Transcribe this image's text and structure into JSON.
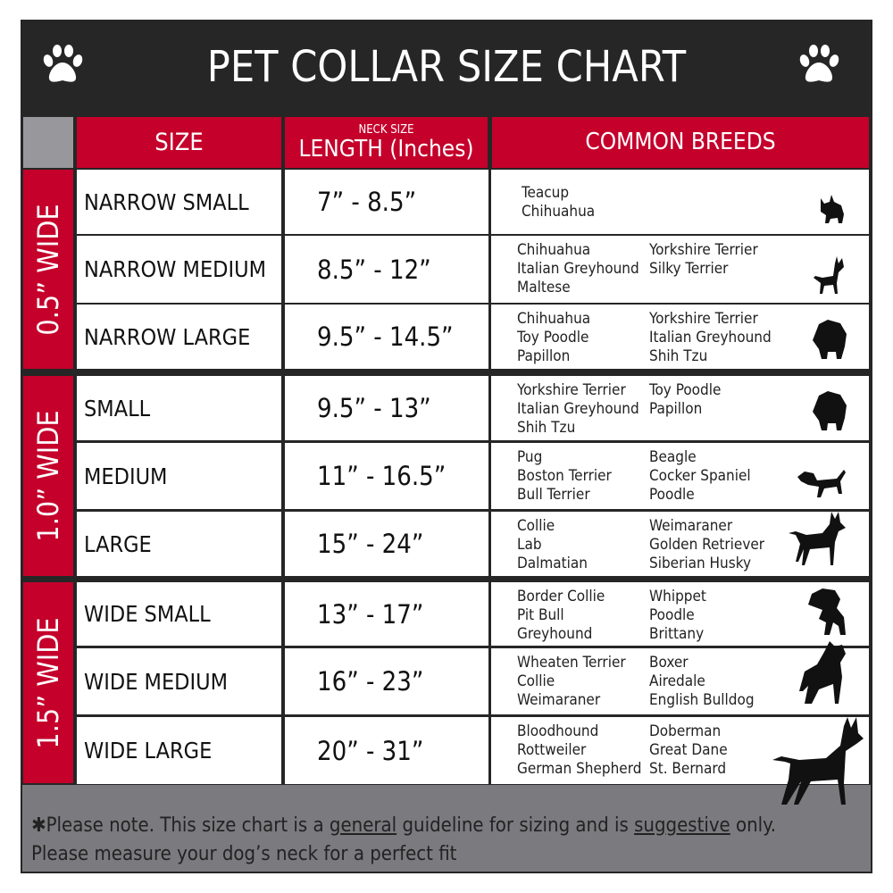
{
  "title": "PET COLLAR SIZE CHART",
  "headers": {
    "size": "SIZE",
    "neck_size": "NECK SIZE",
    "length": "LENGTH (Inches)",
    "breeds": "COMMON BREEDS"
  },
  "colors": {
    "red": "#c4002b",
    "dark": "#262626",
    "gray": "#7b7b7f"
  },
  "groups": [
    {
      "label": "0.5” WIDE",
      "rows": [
        {
          "size": "NARROW SMALL",
          "length": "7” - 8.5”",
          "breeds_left": [
            "Teacup",
            "Chihuahua"
          ],
          "breeds_right": [],
          "icon": "yorkie-silhouette-icon"
        },
        {
          "size": "NARROW MEDIUM",
          "length": "8.5” - 12”",
          "breeds_left": [
            "Chihuahua",
            "Italian Greyhound",
            "Maltese"
          ],
          "breeds_right": [
            "Yorkshire Terrier",
            "Silky Terrier"
          ],
          "icon": "chihuahua-silhouette-icon"
        },
        {
          "size": "NARROW LARGE",
          "length": "9.5” - 14.5”",
          "breeds_left": [
            "Chihuahua",
            "Toy Poodle",
            "Papillon"
          ],
          "breeds_right": [
            "Yorkshire Terrier",
            "Italian Greyhound",
            "Shih Tzu"
          ],
          "icon": "pomeranian-silhouette-icon"
        }
      ]
    },
    {
      "label": "1.0” WIDE",
      "rows": [
        {
          "size": "SMALL",
          "length": "9.5” - 13”",
          "breeds_left": [
            "Yorkshire Terrier",
            "Italian Greyhound",
            "Shih Tzu"
          ],
          "breeds_right": [
            "Toy Poodle",
            "Papillon"
          ],
          "icon": "pomeranian-silhouette-icon"
        },
        {
          "size": "MEDIUM",
          "length": "11” - 16.5”",
          "breeds_left": [
            "Pug",
            "Boston Terrier",
            "Bull Terrier"
          ],
          "breeds_right": [
            "Beagle",
            "Cocker Spaniel",
            "Poodle"
          ],
          "icon": "dachshund-silhouette-icon"
        },
        {
          "size": "LARGE",
          "length": "15” - 24”",
          "breeds_left": [
            "Collie",
            "Lab",
            "Dalmatian"
          ],
          "breeds_right": [
            "Weimaraner",
            "Golden Retriever",
            "Siberian Husky"
          ],
          "icon": "shepherd-silhouette-icon"
        }
      ]
    },
    {
      "label": "1.5” WIDE",
      "rows": [
        {
          "size": "WIDE SMALL",
          "length": "13” - 17”",
          "breeds_left": [
            "Border Collie",
            "Pit Bull",
            "Greyhound"
          ],
          "breeds_right": [
            "Whippet",
            "Poodle",
            "Brittany"
          ],
          "icon": "bulldog-silhouette-icon"
        },
        {
          "size": "WIDE MEDIUM",
          "length": "16” - 23”",
          "breeds_left": [
            "Wheaten Terrier",
            "Collie",
            "Weimaraner"
          ],
          "breeds_right": [
            "Boxer",
            "Airedale",
            "English Bulldog"
          ],
          "icon": "pitbull-silhouette-icon"
        },
        {
          "size": "WIDE LARGE",
          "length": "20” - 31”",
          "breeds_left": [
            "Bloodhound",
            "Rottweiler",
            "German Shepherd"
          ],
          "breeds_right": [
            "Doberman",
            "Great Dane",
            "St. Bernard"
          ],
          "icon": "doberman-silhouette-icon"
        }
      ]
    }
  ],
  "footer": {
    "p1": "✱Please note. This size chart is a",
    "u1": "general",
    "p2": "guideline for sizing and is",
    "u2": "suggestive",
    "p3": "only.",
    "line2": "Please measure your dog’s neck for a perfect fit"
  }
}
